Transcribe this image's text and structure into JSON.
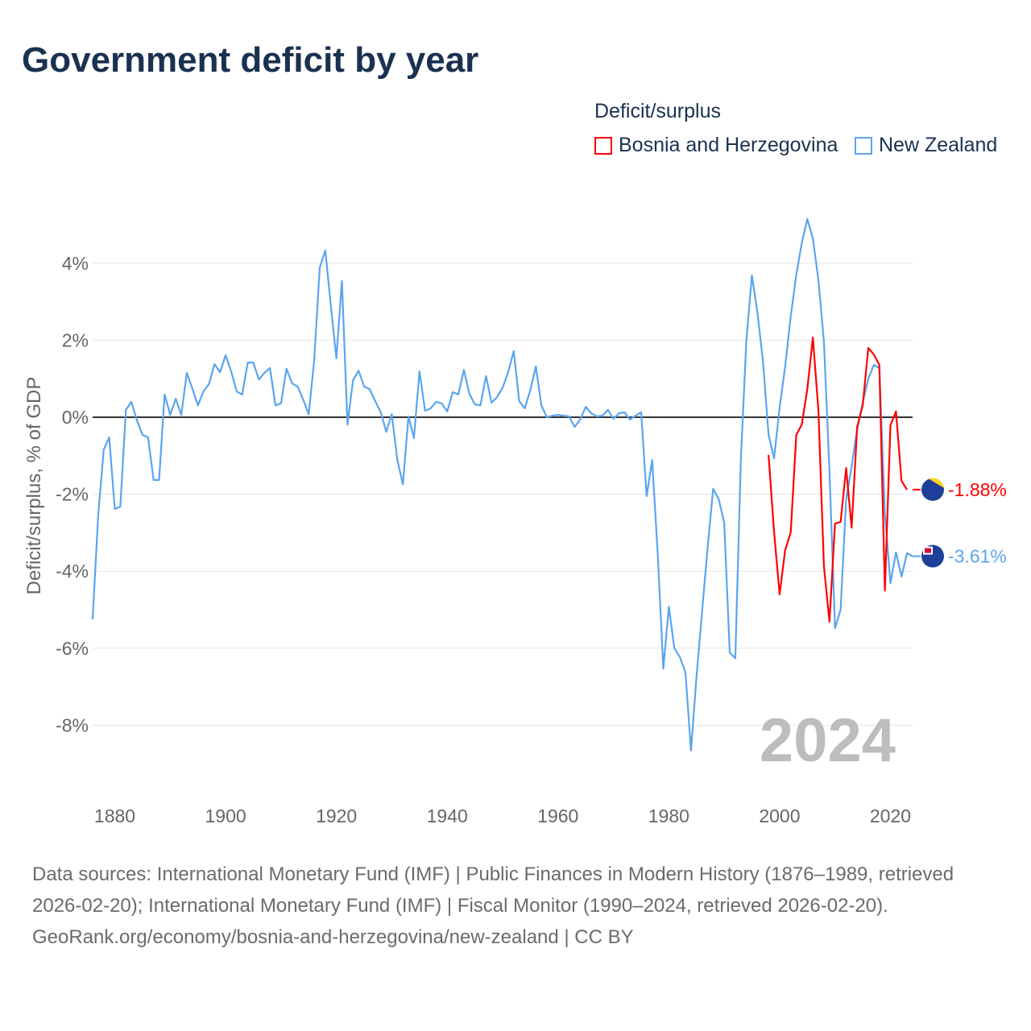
{
  "title": "Government deficit by year",
  "legend": {
    "title": "Deficit/surplus",
    "items": [
      {
        "name": "Bosnia and Herzegovina",
        "color": "#ff0000"
      },
      {
        "name": "New Zealand",
        "color": "#5aa5ee"
      }
    ]
  },
  "year_watermark": "2024",
  "footer": {
    "sources": "Data sources: International Monetary Fund (IMF) | Public Finances in Modern History (1876–1989, retrieved 2026-02-20); International Monetary Fund (IMF) | Fiscal Monitor (1990–2024, retrieved 2026-02-20).",
    "credit": "GeoRank.org/economy/bosnia-and-herzegovina/new-zealand | CC BY"
  },
  "chart_data": {
    "type": "line",
    "title": "Government deficit by year",
    "ylabel": "Deficit/surplus, % of GDP",
    "xlabel": "",
    "xlim": [
      1876,
      2024
    ],
    "ylim": [
      -9.5,
      5.3
    ],
    "x_ticks": [
      1880,
      1900,
      1920,
      1940,
      1960,
      1980,
      2000,
      2020
    ],
    "y_ticks": [
      -8,
      -6,
      -4,
      -2,
      0,
      2,
      4
    ],
    "y_tick_labels": [
      "-8%",
      "-6%",
      "-4%",
      "-2%",
      "0%",
      "2%",
      "4%"
    ],
    "grid": true,
    "legend_position": "top-right",
    "series": [
      {
        "name": "New Zealand",
        "color": "#5aa5ee",
        "start_year": 1876,
        "end_label": "-3.61%",
        "values": [
          -5.25,
          -2.55,
          -0.84,
          -0.52,
          -2.38,
          -2.32,
          0.19,
          0.4,
          -0.08,
          -0.46,
          -0.52,
          -1.63,
          -1.63,
          0.59,
          0.06,
          0.48,
          0.06,
          1.15,
          0.75,
          0.31,
          0.67,
          0.86,
          1.38,
          1.17,
          1.61,
          1.19,
          0.67,
          0.59,
          1.42,
          1.42,
          0.98,
          1.15,
          1.28,
          0.31,
          0.36,
          1.26,
          0.88,
          0.8,
          0.46,
          0.08,
          1.49,
          3.89,
          4.33,
          2.89,
          1.53,
          3.54,
          -0.19,
          0.96,
          1.21,
          0.8,
          0.73,
          0.42,
          0.13,
          -0.38,
          0.08,
          -1.11,
          -1.74,
          0.02,
          -0.54,
          1.19,
          0.17,
          0.23,
          0.4,
          0.36,
          0.15,
          0.65,
          0.59,
          1.23,
          0.61,
          0.33,
          0.31,
          1.07,
          0.38,
          0.52,
          0.77,
          1.17,
          1.72,
          0.42,
          0.23,
          0.71,
          1.32,
          0.31,
          0,
          0.04,
          0.06,
          0.04,
          0.02,
          -0.25,
          -0.06,
          0.27,
          0.1,
          0.02,
          0.04,
          0.19,
          -0.04,
          0.1,
          0.13,
          -0.06,
          0.04,
          0.13,
          -2.05,
          -1.11,
          -3.56,
          -6.53,
          -4.92,
          -6.0,
          -6.23,
          -6.63,
          -8.66,
          -6.74,
          -5.06,
          -3.39,
          -1.86,
          -2.13,
          -2.74,
          -6.11,
          -6.26,
          -1.09,
          1.99,
          3.68,
          2.72,
          1.44,
          -0.46,
          -1.07,
          0.25,
          1.32,
          2.62,
          3.7,
          4.52,
          5.15,
          4.64,
          3.56,
          1.97,
          -1.4,
          -5.48,
          -5.0,
          -2.13,
          -1.28,
          -0.31,
          0.38,
          1.0,
          1.36,
          1.28,
          -2.51,
          -4.31,
          -3.51,
          -4.14,
          -3.53,
          -3.61
        ]
      },
      {
        "name": "Bosnia and Herzegovina",
        "color": "#ff0000",
        "start_year": 1998,
        "end_label": "-1.88%",
        "values": [
          -0.98,
          -2.97,
          -4.6,
          -3.45,
          -2.99,
          -0.46,
          -0.19,
          0.73,
          2.07,
          0.17,
          -3.87,
          -5.31,
          -2.76,
          -2.72,
          -1.32,
          -2.87,
          -0.25,
          0.31,
          1.8,
          1.63,
          1.36,
          -4.5,
          -0.21,
          0.15,
          -1.65,
          -1.88
        ]
      }
    ]
  }
}
